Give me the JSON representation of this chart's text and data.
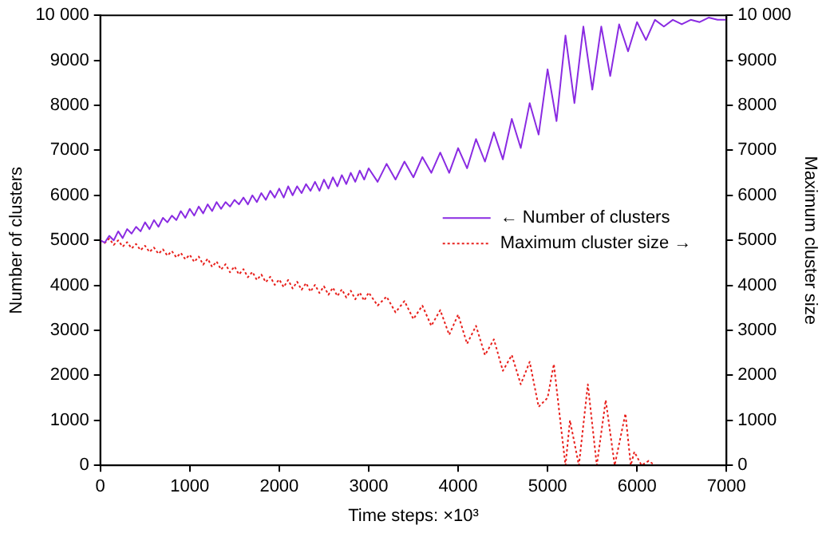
{
  "chart_data": {
    "type": "line",
    "xlabel": "Time steps: ×10³",
    "ylabel": "Number of clusters",
    "y2label": "Maximum cluster size",
    "xlim": [
      0,
      7000
    ],
    "xticks": [
      0,
      1000,
      2000,
      3000,
      4000,
      5000,
      6000,
      7000
    ],
    "ylim": [
      0,
      10000
    ],
    "yticks": [
      0,
      1000,
      2000,
      3000,
      4000,
      5000,
      6000,
      7000,
      8000,
      9000,
      {
        "value": 10000,
        "label": "10 000"
      }
    ],
    "y2lim": [
      0,
      10000
    ],
    "y2ticks": [
      0,
      1000,
      2000,
      3000,
      4000,
      5000,
      6000,
      7000,
      8000,
      9000,
      {
        "value": 10000,
        "label": "10 000"
      }
    ],
    "grid": false,
    "legend": "right",
    "marker": "none",
    "series": [
      {
        "name": "← Number of clusters",
        "color": "#8a2be2",
        "line_style": "solid",
        "x": [
          0,
          50,
          100,
          150,
          200,
          250,
          300,
          350,
          400,
          450,
          500,
          550,
          600,
          650,
          700,
          750,
          800,
          850,
          900,
          950,
          1000,
          1050,
          1100,
          1150,
          1200,
          1250,
          1300,
          1350,
          1400,
          1450,
          1500,
          1550,
          1600,
          1650,
          1700,
          1750,
          1800,
          1850,
          1900,
          1950,
          2000,
          2050,
          2100,
          2150,
          2200,
          2250,
          2300,
          2350,
          2400,
          2450,
          2500,
          2550,
          2600,
          2650,
          2700,
          2750,
          2800,
          2850,
          2900,
          2950,
          3000,
          3100,
          3200,
          3300,
          3400,
          3500,
          3600,
          3700,
          3800,
          3900,
          4000,
          4100,
          4200,
          4300,
          4400,
          4500,
          4600,
          4700,
          4800,
          4900,
          5000,
          5100,
          5200,
          5300,
          5400,
          5500,
          5600,
          5700,
          5800,
          5900,
          6000,
          6100,
          6200,
          6300,
          6400,
          6500,
          6600,
          6700,
          6800,
          6900,
          7000
        ],
        "values": [
          5000,
          4950,
          5100,
          5000,
          5200,
          5050,
          5250,
          5150,
          5300,
          5200,
          5400,
          5250,
          5450,
          5300,
          5500,
          5400,
          5550,
          5450,
          5650,
          5500,
          5700,
          5550,
          5750,
          5600,
          5800,
          5650,
          5850,
          5700,
          5850,
          5750,
          5900,
          5800,
          5950,
          5800,
          6000,
          5850,
          6050,
          5900,
          6100,
          5950,
          6150,
          5950,
          6200,
          6000,
          6200,
          6050,
          6250,
          6100,
          6300,
          6100,
          6350,
          6150,
          6400,
          6200,
          6450,
          6250,
          6500,
          6300,
          6550,
          6350,
          6600,
          6300,
          6700,
          6350,
          6750,
          6400,
          6850,
          6500,
          6950,
          6500,
          7050,
          6600,
          7250,
          6750,
          7400,
          6800,
          7700,
          7050,
          8050,
          7350,
          8800,
          7650,
          9550,
          8050,
          9750,
          8350,
          9750,
          8650,
          9800,
          9200,
          9850,
          9450,
          9900,
          9750,
          9900,
          9800,
          9900,
          9850,
          9950,
          9900,
          9900
        ]
      },
      {
        "name": "Maximum cluster size →",
        "color": "#e8201c",
        "line_style": "dotted",
        "axis": "y2",
        "x": [
          0,
          50,
          100,
          150,
          200,
          250,
          300,
          350,
          400,
          450,
          500,
          550,
          600,
          650,
          700,
          750,
          800,
          850,
          900,
          950,
          1000,
          1050,
          1100,
          1150,
          1200,
          1250,
          1300,
          1350,
          1400,
          1450,
          1500,
          1550,
          1600,
          1650,
          1700,
          1750,
          1800,
          1850,
          1900,
          1950,
          2000,
          2050,
          2100,
          2150,
          2200,
          2250,
          2300,
          2350,
          2400,
          2450,
          2500,
          2550,
          2600,
          2650,
          2700,
          2750,
          2800,
          2850,
          2900,
          2950,
          3000,
          3100,
          3200,
          3300,
          3400,
          3500,
          3600,
          3700,
          3800,
          3900,
          4000,
          4100,
          4200,
          4300,
          4400,
          4500,
          4600,
          4700,
          4800,
          4900,
          5000,
          5070,
          5150,
          5200,
          5250,
          5350,
          5450,
          5550,
          5650,
          5750,
          5870,
          5930,
          5970,
          6050,
          6130,
          6200
        ],
        "values": [
          5000,
          4940,
          5040,
          4900,
          5000,
          4860,
          4960,
          4820,
          4920,
          4780,
          4880,
          4740,
          4840,
          4700,
          4800,
          4660,
          4760,
          4620,
          4720,
          4580,
          4680,
          4520,
          4640,
          4460,
          4590,
          4410,
          4530,
          4350,
          4470,
          4290,
          4420,
          4240,
          4360,
          4180,
          4300,
          4120,
          4240,
          4070,
          4190,
          4010,
          4130,
          3960,
          4120,
          3930,
          4080,
          3900,
          4050,
          3860,
          4010,
          3830,
          3980,
          3790,
          3950,
          3760,
          3910,
          3730,
          3880,
          3690,
          3840,
          3660,
          3840,
          3550,
          3750,
          3400,
          3650,
          3250,
          3550,
          3100,
          3450,
          2900,
          3350,
          2700,
          3100,
          2450,
          2800,
          2100,
          2450,
          1800,
          2300,
          1300,
          1500,
          2250,
          850,
          0,
          1000,
          0,
          1800,
          0,
          1450,
          0,
          1150,
          0,
          300,
          0,
          100,
          0
        ]
      }
    ]
  }
}
